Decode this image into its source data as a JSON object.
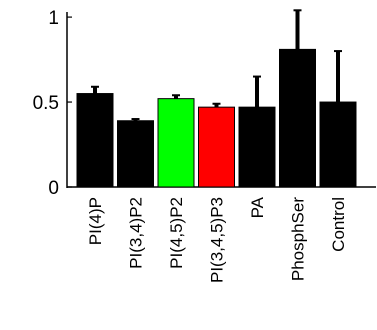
{
  "chart_data": {
    "type": "bar",
    "categories": [
      "PI(4)P",
      "PI(3,4)P2",
      "PI(4,5)P2",
      "PI(3,4,5)P3",
      "PA",
      "PhosphSer",
      "Control"
    ],
    "values": [
      0.55,
      0.39,
      0.52,
      0.47,
      0.47,
      0.81,
      0.5
    ],
    "errors": [
      0.04,
      0.01,
      0.02,
      0.02,
      0.18,
      0.23,
      0.3
    ],
    "colors": [
      "#000000",
      "#000000",
      "#00ff00",
      "#ff0000",
      "#000000",
      "#000000",
      "#000000"
    ],
    "ylim": [
      0,
      1.03
    ],
    "yticks": [
      0,
      0.5,
      1
    ],
    "ytick_labels": [
      "0",
      "0.5",
      "1"
    ],
    "title": "",
    "xlabel": "",
    "ylabel": "",
    "grid": false
  }
}
